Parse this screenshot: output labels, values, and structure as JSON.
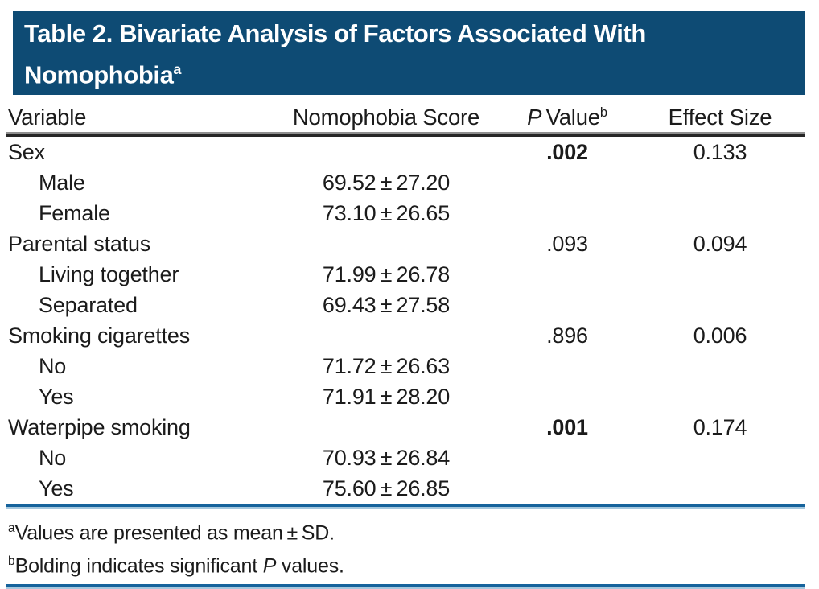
{
  "title": {
    "text": "Table 2. Bivariate Analysis of Factors Associated With Nomophobia",
    "superscript": "a"
  },
  "columns": {
    "variable": "Variable",
    "score": "Nomophobia Score",
    "p_italic": "P",
    "p_rest": " Value",
    "p_sup": "b",
    "effect": "Effect Size"
  },
  "rows": [
    {
      "label": "Sex",
      "score": "",
      "p": ".002",
      "effect": "0.133",
      "indent": false,
      "bold_p": true
    },
    {
      "label": "Male",
      "score": "69.52 ± 27.20",
      "p": "",
      "effect": "",
      "indent": true,
      "bold_p": false
    },
    {
      "label": "Female",
      "score": "73.10 ± 26.65",
      "p": "",
      "effect": "",
      "indent": true,
      "bold_p": false
    },
    {
      "label": "Parental status",
      "score": "",
      "p": ".093",
      "effect": "0.094",
      "indent": false,
      "bold_p": false
    },
    {
      "label": "Living together",
      "score": "71.99 ± 26.78",
      "p": "",
      "effect": "",
      "indent": true,
      "bold_p": false
    },
    {
      "label": "Separated",
      "score": "69.43 ± 27.58",
      "p": "",
      "effect": "",
      "indent": true,
      "bold_p": false
    },
    {
      "label": "Smoking cigarettes",
      "score": "",
      "p": ".896",
      "effect": "0.006",
      "indent": false,
      "bold_p": false
    },
    {
      "label": "No",
      "score": "71.72 ± 26.63",
      "p": "",
      "effect": "",
      "indent": true,
      "bold_p": false
    },
    {
      "label": "Yes",
      "score": "71.91 ± 28.20",
      "p": "",
      "effect": "",
      "indent": true,
      "bold_p": false
    },
    {
      "label": "Waterpipe smoking",
      "score": "",
      "p": ".001",
      "effect": "0.174",
      "indent": false,
      "bold_p": true
    },
    {
      "label": "No",
      "score": "70.93 ± 26.84",
      "p": "",
      "effect": "",
      "indent": true,
      "bold_p": false
    },
    {
      "label": "Yes",
      "score": "75.60 ± 26.85",
      "p": "",
      "effect": "",
      "indent": true,
      "bold_p": false
    }
  ],
  "footnotes": {
    "a": {
      "marker": "a",
      "text": "Values are presented as mean ± SD."
    },
    "b": {
      "marker": "b",
      "pre": "Bolding indicates significant ",
      "italic": "P",
      "post": " values."
    }
  },
  "colors": {
    "title_bar_bg": "#0E4B74",
    "title_text": "#FFFFFF",
    "header_rule": "#262626",
    "blue_rule": "#16639C",
    "blue_rule_light": "#A6C8DE",
    "body_text": "#1B1B1B"
  }
}
